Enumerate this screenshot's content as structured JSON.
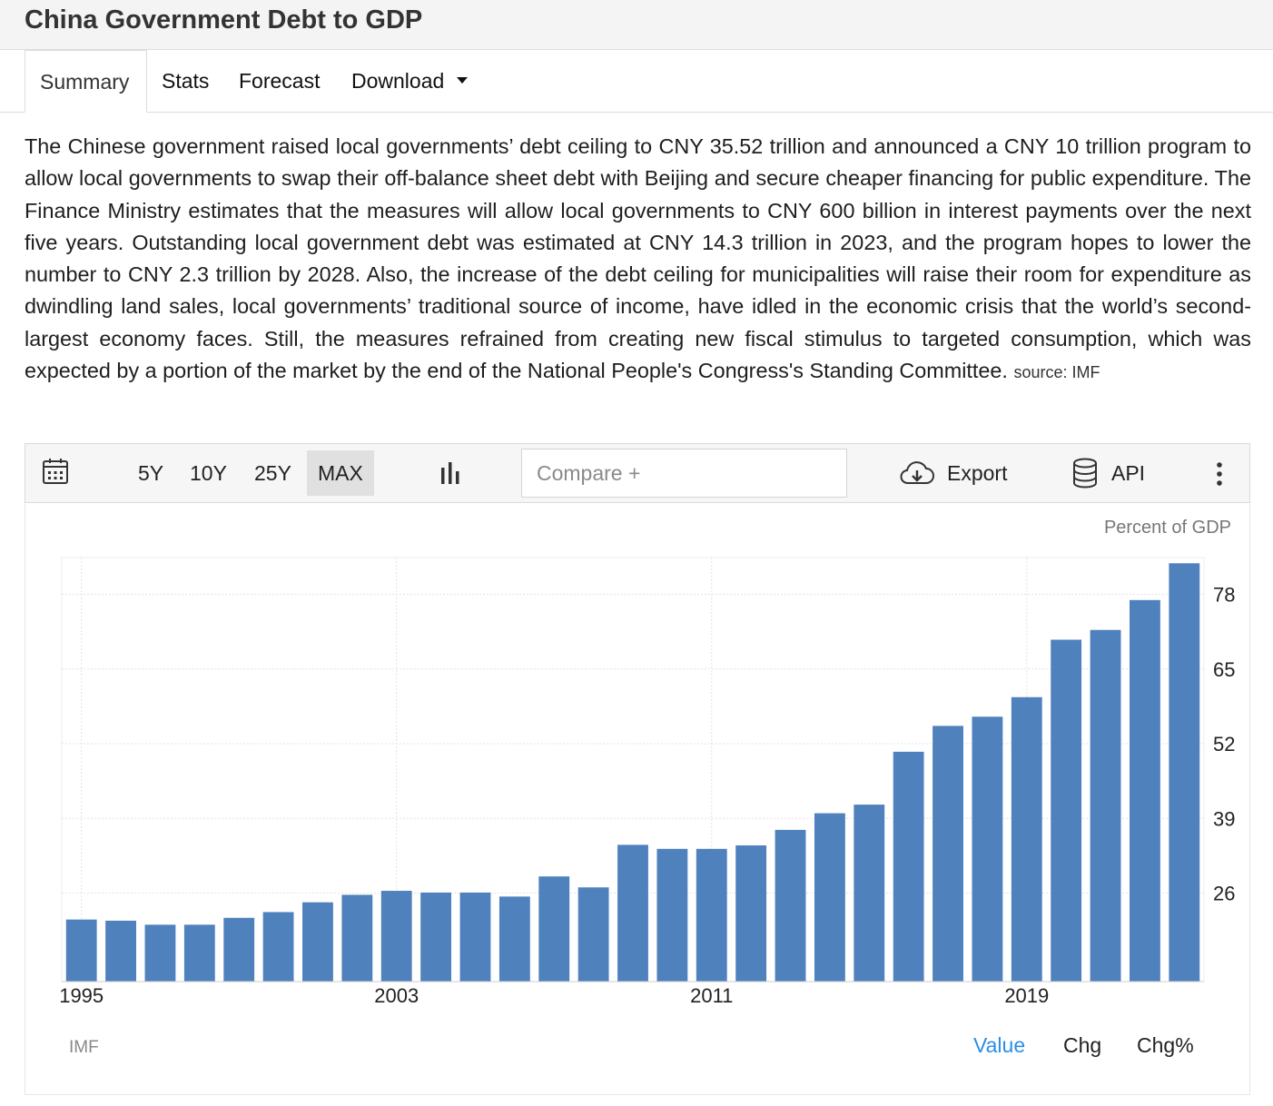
{
  "header": {
    "title": "China Government Debt to GDP"
  },
  "tabs": [
    {
      "label": "Summary",
      "active": true
    },
    {
      "label": "Stats"
    },
    {
      "label": "Forecast"
    },
    {
      "label": "Download"
    }
  ],
  "summary": {
    "text": "The Chinese government raised local governments’ debt ceiling to CNY 35.52 trillion and announced a CNY 10 trillion program to allow local governments to swap their off-balance sheet debt with Beijing and secure cheaper financing for public expenditure. The Finance Ministry estimates that the measures will allow local governments to CNY 600 billion in interest payments over the next five years. Outstanding local government debt was estimated at CNY 14.3 trillion in 2023, and the program hopes to lower the number to CNY 2.3 trillion by 2028. Also, the increase of the debt ceiling for municipalities will raise their room for expenditure as dwindling land sales, local governments’ traditional source of income, have idled in the economic crisis that the world’s second-largest economy faces. Still, the measures refrained from creating new fiscal stimulus to targeted consumption, which was expected by a portion of the market by the end of the National People's Congress's Standing Committee.",
    "source": "source: IMF"
  },
  "toolbar": {
    "calendar_icon": "calendar-icon",
    "ranges": [
      "5Y",
      "10Y",
      "25Y",
      "MAX"
    ],
    "active_range": "MAX",
    "chart_type_icon": "bar-chart-icon",
    "compare_placeholder": "Compare +",
    "export_label": "Export",
    "export_icon": "cloud-download-icon",
    "api_label": "API",
    "api_icon": "database-icon",
    "more_icon": "more-vertical-icon"
  },
  "chart": {
    "unit_label": "Percent of GDP",
    "source_label": "IMF",
    "view_options": [
      "Value",
      "Chg",
      "Chg%"
    ],
    "active_view": "Value"
  },
  "chart_data": {
    "type": "bar",
    "ylabel": "Percent of GDP",
    "categories": [
      "1995",
      "1996",
      "1997",
      "1998",
      "1999",
      "2000",
      "2001",
      "2002",
      "2003",
      "2004",
      "2005",
      "2006",
      "2007",
      "2008",
      "2009",
      "2010",
      "2011",
      "2012",
      "2013",
      "2014",
      "2015",
      "2016",
      "2017",
      "2018",
      "2019",
      "2020",
      "2021",
      "2022",
      "2023"
    ],
    "values": [
      21.4,
      21.2,
      20.5,
      20.5,
      21.7,
      22.7,
      24.4,
      25.7,
      26.4,
      26.1,
      26.1,
      25.4,
      28.9,
      27.0,
      34.4,
      33.7,
      33.7,
      34.3,
      37.0,
      39.9,
      41.4,
      50.6,
      55.1,
      56.7,
      60.1,
      70.1,
      71.8,
      77.0,
      83.4
    ],
    "x_tick_labels": [
      "1995",
      "2003",
      "2011",
      "2019"
    ],
    "y_ticks": [
      26,
      39,
      52,
      65,
      78
    ],
    "ylim": [
      10.6,
      84.4
    ],
    "y_axis_position": "right",
    "grid": true,
    "bar_color": "#4f81bd"
  }
}
